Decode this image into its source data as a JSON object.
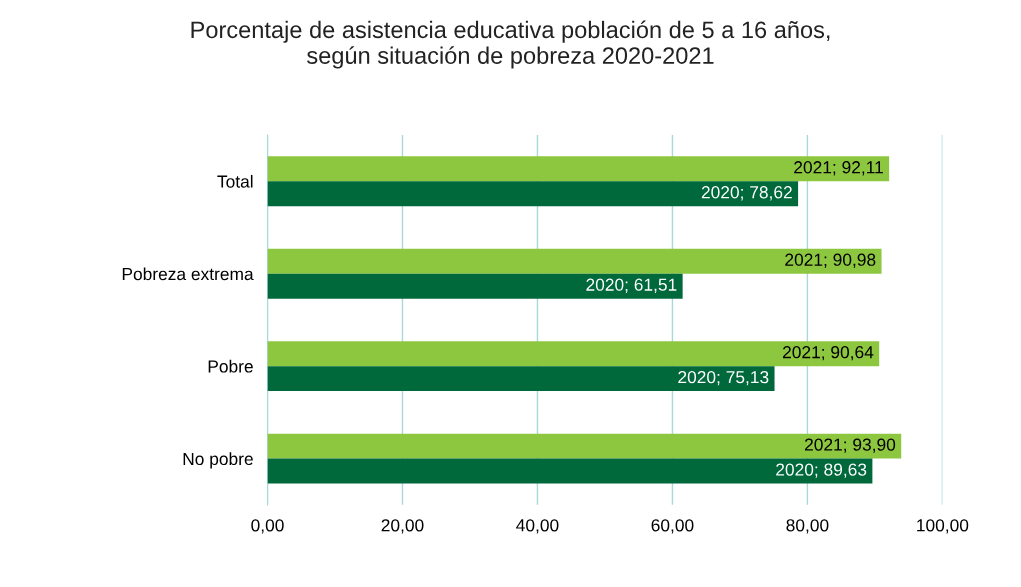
{
  "chart_data": {
    "type": "bar",
    "orientation": "horizontal",
    "title": "Porcentaje de asistencia educativa población de 5 a 16 años,\nsegún situación de pobreza 2020-2021",
    "categories": [
      "Total",
      "Pobreza extrema",
      "Pobre",
      "No pobre"
    ],
    "series": [
      {
        "color": "#8dc63f",
        "values": [
          92.11,
          90.98,
          90.64,
          93.9
        ],
        "value_labels": [
          "2021; 92,11",
          "2021; 90,98",
          "2021; 90,64",
          "2021; 93,90"
        ]
      },
      {
        "color": "#00693c",
        "values": [
          78.62,
          61.51,
          75.13,
          89.63
        ],
        "value_labels": [
          "2020; 78,62",
          "2020; 61,51",
          "2020; 75,13",
          "2020; 89,63"
        ]
      }
    ],
    "xlim": [
      0,
      100
    ],
    "xticks": [
      {
        "value": 0,
        "label": "0,00"
      },
      {
        "value": 20,
        "label": "20,00"
      },
      {
        "value": 40,
        "label": "40,00"
      },
      {
        "value": 60,
        "label": "60,00"
      },
      {
        "value": 80,
        "label": "80,00"
      },
      {
        "value": 100,
        "label": "100,00"
      }
    ],
    "grid": "x",
    "legend": false
  }
}
